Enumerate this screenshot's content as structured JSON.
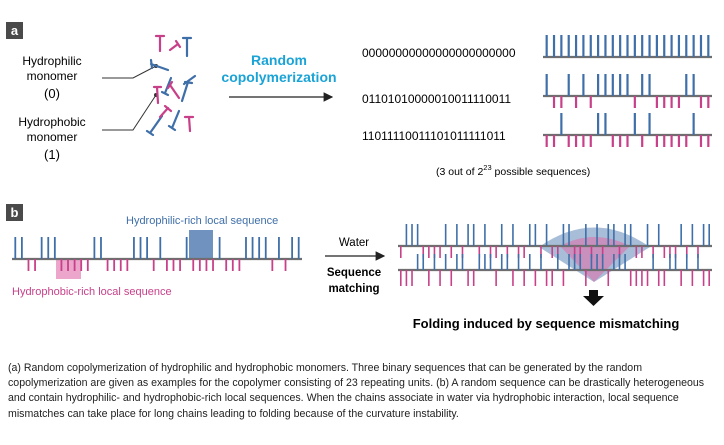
{
  "panel_a": {
    "label": "a",
    "hydrophilic_label": [
      "Hydrophilic",
      "monomer",
      "(0)"
    ],
    "hydrophobic_label": [
      "Hydrophobic",
      "monomer",
      "(1)"
    ],
    "process_label": [
      "Random",
      "copolymerization"
    ],
    "sequences": [
      "00000000000000000000000",
      "01101010000010011110011",
      "11011110011101011111011"
    ],
    "note_prefix": "(3 out of 2",
    "note_exponent": "23",
    "note_suffix": " possible sequences)"
  },
  "panel_b": {
    "label": "b",
    "hydrophilic_rich_label": "Hydrophilic-rich local sequence",
    "hydrophobic_rich_label": "Hydrophobic-rich local sequence",
    "water_label": "Water",
    "matching_label": [
      "Sequence",
      "matching"
    ],
    "folding_label": "Folding induced by sequence mismatching"
  },
  "caption": "(a) Random copolymerization of hydrophilic and hydrophobic monomers. Three binary sequences that can be generated by the random copolymerization are given as examples for the copolymer consisting of 23 repeating units. (b) A random sequence can be drastically heterogeneous and contain hydrophilic- and hydrophobic-rich local sequences. When the chains associate in water via hydrophobic interaction, local sequence mismatches can take place for long chains leading to folding because of the curvature instability.",
  "colors": {
    "hydrophilic": "#3f6fa8",
    "hydrophobic": "#c8408a",
    "process_text": "#1aa3d6",
    "backbone": "#6e6e6e",
    "panel_label_bg": "#4a4a4a"
  }
}
